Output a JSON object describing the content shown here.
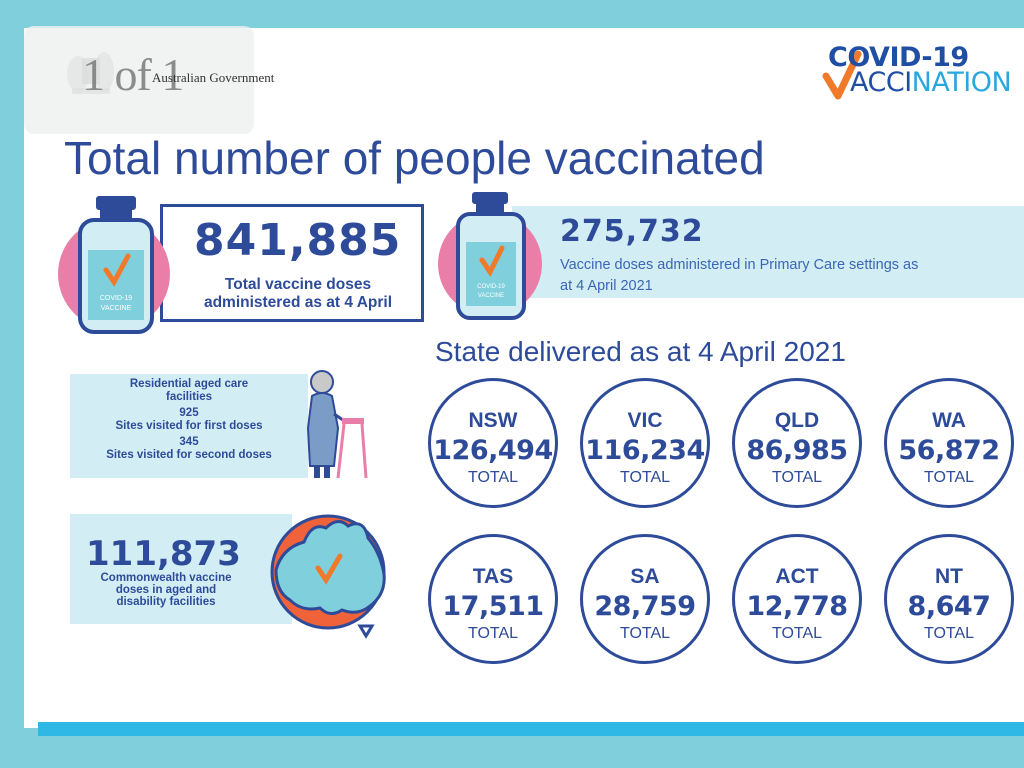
{
  "header": {
    "government": "Australian Government",
    "page_indicator": "1 of 1",
    "logo_line1": "COVID-19",
    "logo_line2_part1": "ACCI",
    "logo_line2_part2": "NATION"
  },
  "title": "Total number of people vaccinated",
  "total_doses": {
    "value": "841,885",
    "caption_line1": "Total vaccine doses",
    "caption_line2": "administered as at 4 April"
  },
  "primary_care": {
    "value": "275,732",
    "caption_line1": "Vaccine doses administered in Primary Care settings as",
    "caption_line2": "at 4 April 2021"
  },
  "vial_label": {
    "line1": "COVID-19",
    "line2": "VACCINE"
  },
  "aged_care": {
    "heading_line1": "Residential aged care",
    "heading_line2": "facilities",
    "first_value": "925",
    "first_label": "Sites visited for first doses",
    "second_value": "345",
    "second_label": "Sites visited for second doses"
  },
  "commonwealth": {
    "value": "111,873",
    "caption_line1": "Commonwealth vaccine",
    "caption_line2": "doses in aged and",
    "caption_line3": "disability facilities"
  },
  "states_heading": "State delivered as at 4 April 2021",
  "states": [
    {
      "name": "NSW",
      "value": "126,494",
      "label": "TOTAL"
    },
    {
      "name": "VIC",
      "value": "116,234",
      "label": "TOTAL"
    },
    {
      "name": "QLD",
      "value": "86,985",
      "label": "TOTAL"
    },
    {
      "name": "WA",
      "value": "56,872",
      "label": "TOTAL"
    },
    {
      "name": "TAS",
      "value": "17,511",
      "label": "TOTAL"
    },
    {
      "name": "SA",
      "value": "28,759",
      "label": "TOTAL"
    },
    {
      "name": "ACT",
      "value": "12,778",
      "label": "TOTAL"
    },
    {
      "name": "NT",
      "value": "8,647",
      "label": "TOTAL"
    }
  ],
  "colors": {
    "navy": "#2d4b99",
    "light_blue_panel": "#d3edf4",
    "pink": "#e97fa8",
    "orange": "#f0623a",
    "frame": "#7fcfdc",
    "accent_bar": "#2fb7e6"
  }
}
